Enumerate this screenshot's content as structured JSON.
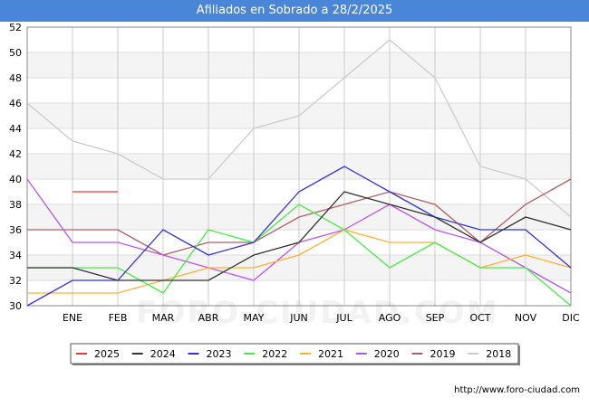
{
  "page": {
    "title": "Afiliados en Sobrado a 28/2/2025",
    "footer_url": "http://www.foro-ciudad.com",
    "watermark": "FORO-CIUDAD.COM"
  },
  "chart_data": {
    "type": "line",
    "title": "Afiliados en Sobrado a 28/2/2025",
    "xlabel": "",
    "ylabel": "",
    "categories": [
      "",
      "ENE",
      "FEB",
      "MAR",
      "ABR",
      "MAY",
      "JUN",
      "JUL",
      "AGO",
      "SEP",
      "OCT",
      "NOV",
      "DIC"
    ],
    "ylim": [
      30,
      52
    ],
    "yticks": [
      30,
      32,
      34,
      36,
      38,
      40,
      42,
      44,
      46,
      48,
      50,
      52
    ],
    "grid": true,
    "legend_position": "bottom",
    "series": [
      {
        "name": "2025",
        "color": "#e8393a",
        "values": [
          null,
          39,
          39,
          null,
          null,
          null,
          null,
          null,
          null,
          null,
          null,
          null,
          null
        ]
      },
      {
        "name": "2024",
        "color": "#333333",
        "values": [
          33,
          33,
          32,
          32,
          32,
          34,
          35,
          39,
          38,
          37,
          35,
          37,
          36
        ]
      },
      {
        "name": "2023",
        "color": "#3333dd",
        "values": [
          30,
          32,
          32,
          36,
          34,
          35,
          39,
          41,
          39,
          37,
          36,
          36,
          33
        ]
      },
      {
        "name": "2022",
        "color": "#44ee44",
        "values": [
          33,
          33,
          33,
          31,
          36,
          35,
          38,
          36,
          33,
          35,
          33,
          33,
          30
        ]
      },
      {
        "name": "2021",
        "color": "#ffb033",
        "values": [
          31,
          31,
          31,
          32,
          33,
          33,
          34,
          36,
          35,
          35,
          33,
          34,
          33
        ]
      },
      {
        "name": "2020",
        "color": "#bb55ee",
        "values": [
          40,
          35,
          35,
          34,
          33,
          32,
          35,
          36,
          38,
          36,
          35,
          33,
          31
        ]
      },
      {
        "name": "2019",
        "color": "#b06060",
        "values": [
          36,
          36,
          36,
          34,
          35,
          35,
          37,
          38,
          39,
          38,
          35,
          38,
          40
        ]
      },
      {
        "name": "2018",
        "color": "#cccccc",
        "values": [
          46,
          43,
          42,
          40,
          40,
          44,
          45,
          48,
          51,
          48,
          41,
          40,
          37
        ]
      }
    ]
  }
}
